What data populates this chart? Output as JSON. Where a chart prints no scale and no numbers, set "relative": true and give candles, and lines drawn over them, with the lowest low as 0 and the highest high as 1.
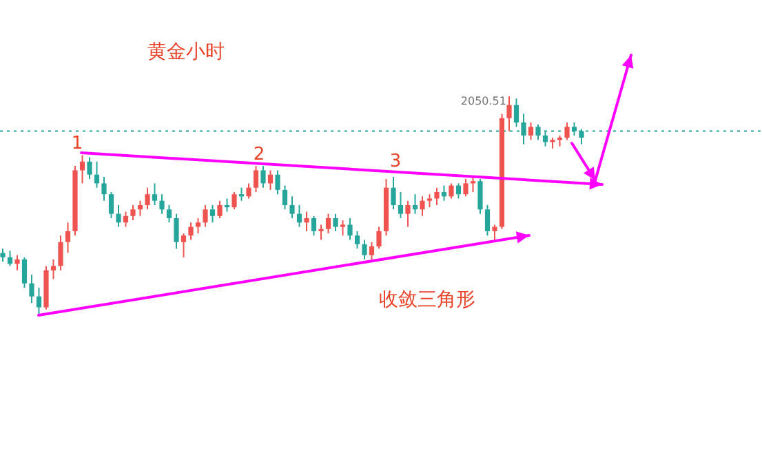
{
  "chart_data": {
    "type": "candlestick",
    "title": "黄金小时",
    "relative": true,
    "categories": [
      null,
      null,
      null,
      null,
      null,
      null,
      null,
      null,
      null,
      null,
      null,
      null,
      null,
      null,
      null,
      null,
      null,
      null,
      null,
      null,
      null,
      null,
      null,
      null,
      null,
      null,
      null,
      null,
      null,
      null,
      null,
      null,
      null,
      null,
      null,
      null,
      null,
      null,
      null,
      null,
      null,
      null,
      null,
      null,
      null,
      null,
      null,
      null,
      null,
      null,
      null,
      null,
      null,
      null,
      null,
      null,
      null,
      null,
      null,
      null,
      null,
      null,
      null,
      null,
      null,
      null,
      null,
      null,
      null,
      null,
      null,
      null,
      null,
      null,
      null,
      null,
      null,
      null,
      null,
      null,
      null
    ],
    "ohlc": [
      [
        0.28,
        0.3,
        0.24,
        0.26
      ],
      [
        0.26,
        0.29,
        0.22,
        0.23
      ],
      [
        0.23,
        0.27,
        0.2,
        0.25
      ],
      [
        0.25,
        0.26,
        0.12,
        0.14
      ],
      [
        0.14,
        0.18,
        0.05,
        0.08
      ],
      [
        0.08,
        0.12,
        0,
        0.03
      ],
      [
        0.03,
        0.22,
        0.02,
        0.2
      ],
      [
        0.2,
        0.25,
        0.16,
        0.22
      ],
      [
        0.22,
        0.36,
        0.2,
        0.33
      ],
      [
        0.33,
        0.42,
        0.28,
        0.38
      ],
      [
        0.38,
        0.68,
        0.36,
        0.66
      ],
      [
        0.66,
        0.73,
        0.6,
        0.7
      ],
      [
        0.7,
        0.72,
        0.62,
        0.64
      ],
      [
        0.64,
        0.7,
        0.58,
        0.6
      ],
      [
        0.6,
        0.63,
        0.52,
        0.55
      ],
      [
        0.55,
        0.56,
        0.44,
        0.46
      ],
      [
        0.46,
        0.5,
        0.4,
        0.42
      ],
      [
        0.42,
        0.47,
        0.4,
        0.45
      ],
      [
        0.45,
        0.5,
        0.43,
        0.48
      ],
      [
        0.48,
        0.52,
        0.45,
        0.5
      ],
      [
        0.5,
        0.58,
        0.48,
        0.55
      ],
      [
        0.55,
        0.6,
        0.5,
        0.52
      ],
      [
        0.52,
        0.55,
        0.46,
        0.48
      ],
      [
        0.48,
        0.5,
        0.42,
        0.44
      ],
      [
        0.44,
        0.46,
        0.3,
        0.33
      ],
      [
        0.33,
        0.37,
        0.26,
        0.36
      ],
      [
        0.36,
        0.42,
        0.34,
        0.4
      ],
      [
        0.4,
        0.44,
        0.37,
        0.42
      ],
      [
        0.42,
        0.5,
        0.4,
        0.48
      ],
      [
        0.48,
        0.5,
        0.42,
        0.45
      ],
      [
        0.45,
        0.52,
        0.44,
        0.5
      ],
      [
        0.5,
        0.53,
        0.47,
        0.49
      ],
      [
        0.49,
        0.56,
        0.48,
        0.55
      ],
      [
        0.55,
        0.58,
        0.52,
        0.54
      ],
      [
        0.54,
        0.6,
        0.53,
        0.58
      ],
      [
        0.58,
        0.68,
        0.56,
        0.66
      ],
      [
        0.66,
        0.68,
        0.58,
        0.6
      ],
      [
        0.6,
        0.66,
        0.57,
        0.64
      ],
      [
        0.64,
        0.66,
        0.55,
        0.57
      ],
      [
        0.57,
        0.59,
        0.48,
        0.5
      ],
      [
        0.5,
        0.54,
        0.44,
        0.46
      ],
      [
        0.46,
        0.5,
        0.4,
        0.42
      ],
      [
        0.42,
        0.47,
        0.38,
        0.44
      ],
      [
        0.44,
        0.45,
        0.36,
        0.38
      ],
      [
        0.38,
        0.41,
        0.34,
        0.39
      ],
      [
        0.39,
        0.46,
        0.37,
        0.44
      ],
      [
        0.44,
        0.46,
        0.38,
        0.4
      ],
      [
        0.4,
        0.43,
        0.36,
        0.41
      ],
      [
        0.41,
        0.44,
        0.34,
        0.36
      ],
      [
        0.36,
        0.38,
        0.3,
        0.32
      ],
      [
        0.32,
        0.34,
        0.25,
        0.27
      ],
      [
        0.27,
        0.33,
        0.25,
        0.31
      ],
      [
        0.31,
        0.4,
        0.3,
        0.38
      ],
      [
        0.38,
        0.62,
        0.36,
        0.58
      ],
      [
        0.58,
        0.63,
        0.48,
        0.5
      ],
      [
        0.5,
        0.56,
        0.44,
        0.46
      ],
      [
        0.46,
        0.52,
        0.4,
        0.5
      ],
      [
        0.5,
        0.55,
        0.46,
        0.48
      ],
      [
        0.48,
        0.54,
        0.45,
        0.52
      ],
      [
        0.52,
        0.55,
        0.49,
        0.53
      ],
      [
        0.53,
        0.58,
        0.5,
        0.56
      ],
      [
        0.56,
        0.59,
        0.52,
        0.54
      ],
      [
        0.54,
        0.6,
        0.53,
        0.59
      ],
      [
        0.59,
        0.6,
        0.53,
        0.55
      ],
      [
        0.55,
        0.62,
        0.54,
        0.6
      ],
      [
        0.6,
        0.63,
        0.56,
        0.61
      ],
      [
        0.61,
        0.62,
        0.46,
        0.48
      ],
      [
        0.48,
        0.5,
        0.36,
        0.38
      ],
      [
        0.38,
        0.41,
        0.33,
        0.4
      ],
      [
        0.4,
        0.92,
        0.39,
        0.9
      ],
      [
        0.9,
        1.0,
        0.84,
        0.96
      ],
      [
        0.96,
        0.99,
        0.86,
        0.88
      ],
      [
        0.88,
        0.92,
        0.78,
        0.82
      ],
      [
        0.82,
        0.88,
        0.8,
        0.86
      ],
      [
        0.86,
        0.87,
        0.8,
        0.82
      ],
      [
        0.82,
        0.84,
        0.77,
        0.79
      ],
      [
        0.79,
        0.81,
        0.76,
        0.8
      ],
      [
        0.8,
        0.82,
        0.77,
        0.81
      ],
      [
        0.81,
        0.88,
        0.8,
        0.86
      ],
      [
        0.86,
        0.88,
        0.82,
        0.84
      ],
      [
        0.84,
        0.85,
        0.78,
        0.81
      ]
    ],
    "colors": [
      "#26a69a",
      "#26a69a",
      "#ef5350",
      "#26a69a",
      "#26a69a",
      "#26a69a",
      "#ef5350",
      "#ef5350",
      "#ef5350",
      "#ef5350",
      "#ef5350",
      "#ef5350",
      "#26a69a",
      "#26a69a",
      "#26a69a",
      "#26a69a",
      "#26a69a",
      "#ef5350",
      "#ef5350",
      "#ef5350",
      "#ef5350",
      "#26a69a",
      "#26a69a",
      "#26a69a",
      "#26a69a",
      "#ef5350",
      "#ef5350",
      "#ef5350",
      "#ef5350",
      "#26a69a",
      "#ef5350",
      "#26a69a",
      "#ef5350",
      "#26a69a",
      "#ef5350",
      "#ef5350",
      "#26a69a",
      "#ef5350",
      "#26a69a",
      "#26a69a",
      "#26a69a",
      "#26a69a",
      "#ef5350",
      "#26a69a",
      "#ef5350",
      "#ef5350",
      "#26a69a",
      "#ef5350",
      "#26a69a",
      "#26a69a",
      "#26a69a",
      "#ef5350",
      "#ef5350",
      "#ef5350",
      "#26a69a",
      "#26a69a",
      "#ef5350",
      "#26a69a",
      "#ef5350",
      "#ef5350",
      "#ef5350",
      "#26a69a",
      "#ef5350",
      "#26a69a",
      "#ef5350",
      "#ef5350",
      "#26a69a",
      "#26a69a",
      "#ef5350",
      "#ef5350",
      "#ef5350",
      "#26a69a",
      "#26a69a",
      "#ef5350",
      "#26a69a",
      "#26a69a",
      "#ef5350",
      "#ef5350",
      "#ef5350",
      "#26a69a",
      "#26a69a"
    ],
    "ref_lines": [
      {
        "axis": "y",
        "value": 0.84,
        "color": "#26a69a",
        "line_style": "dotted"
      }
    ],
    "annotations": [
      "1",
      "2",
      "3",
      "收敛三角形",
      "2050.51"
    ]
  }
}
